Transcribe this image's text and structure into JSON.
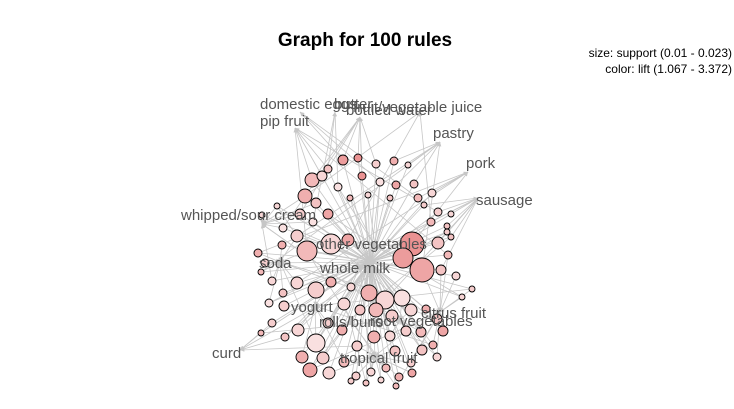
{
  "title": "Graph for 100 rules",
  "legend": {
    "size": "size: support (0.01 - 0.023)",
    "color": "color: lift (1.067 - 3.372)"
  },
  "items": [
    {
      "label": "domestic eggs"
    },
    {
      "label": "butter"
    },
    {
      "label": "bottled water"
    },
    {
      "label": "fruit/vegetable juice"
    },
    {
      "label": "pip fruit"
    },
    {
      "label": "pastry"
    },
    {
      "label": "pork"
    },
    {
      "label": "sausage"
    },
    {
      "label": "whipped/sour cream"
    },
    {
      "label": "other vegetables"
    },
    {
      "label": "soda"
    },
    {
      "label": "whole milk"
    },
    {
      "label": "yogurt"
    },
    {
      "label": "citrus fruit"
    },
    {
      "label": "rolls/buns"
    },
    {
      "label": "root vegetables"
    },
    {
      "label": "curd"
    },
    {
      "label": "tropical fruit"
    }
  ],
  "colors": {
    "edge": "#c6c6c6",
    "node_outline": "#000000",
    "lift_low": "#fbeaea",
    "lift_high": "#e88888",
    "label": "#555555"
  }
}
